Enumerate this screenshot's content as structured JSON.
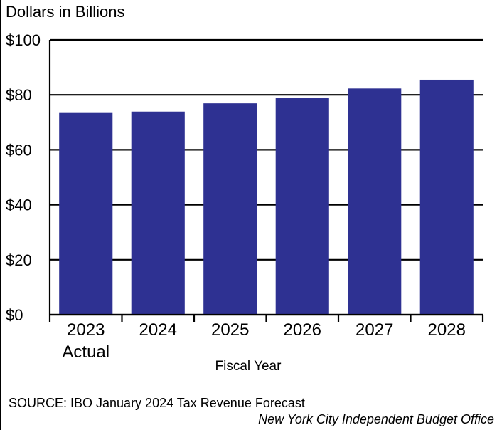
{
  "chart_data": {
    "type": "bar",
    "ylabel": "Dollars in Billions",
    "xlabel": "Fiscal Year",
    "categories": [
      "2023",
      "2024",
      "2025",
      "2026",
      "2027",
      "2028"
    ],
    "category_sublabels": [
      "Actual",
      "",
      "",
      "",
      "",
      ""
    ],
    "values": [
      73.4,
      73.9,
      76.9,
      78.9,
      82.3,
      85.5
    ],
    "ylim": [
      0,
      100
    ],
    "yticks": [
      0,
      20,
      40,
      60,
      80,
      100
    ],
    "ytick_labels": [
      "$0",
      "$20",
      "$40",
      "$60",
      "$80",
      "$100"
    ],
    "grid": true,
    "bar_color": "#2e3192"
  },
  "footer": {
    "source": "SOURCE: IBO January 2024 Tax Revenue Forecast",
    "credit": "New York City Independent Budget Office"
  }
}
